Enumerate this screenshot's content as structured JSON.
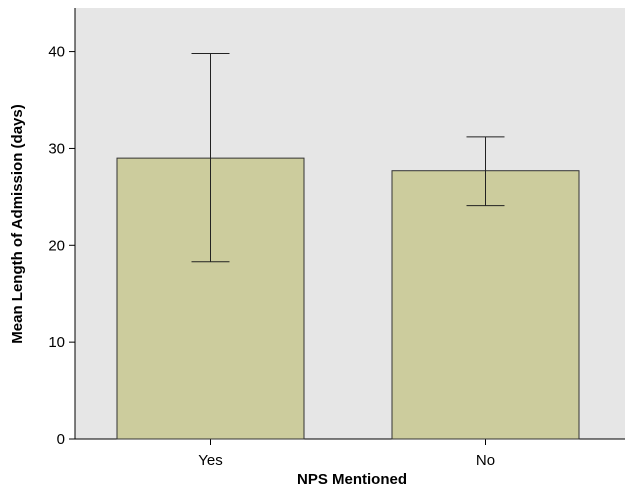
{
  "colors": {
    "plot_background": "#e6e6e6",
    "bar_fill": "#cccc9d",
    "bar_stroke": "#333333",
    "error_bar": "#222222"
  },
  "chart_data": {
    "type": "bar",
    "title": "",
    "xlabel": "NPS Mentioned",
    "ylabel": "Mean Length of Admission (days)",
    "categories": [
      "Yes",
      "No"
    ],
    "values": [
      29.0,
      27.7
    ],
    "error_low": [
      18.3,
      24.1
    ],
    "error_high": [
      39.8,
      31.2
    ],
    "ylim": [
      0,
      44.5
    ],
    "yticks": [
      0,
      10,
      20,
      30,
      40
    ],
    "grid": false,
    "legend": "none"
  }
}
